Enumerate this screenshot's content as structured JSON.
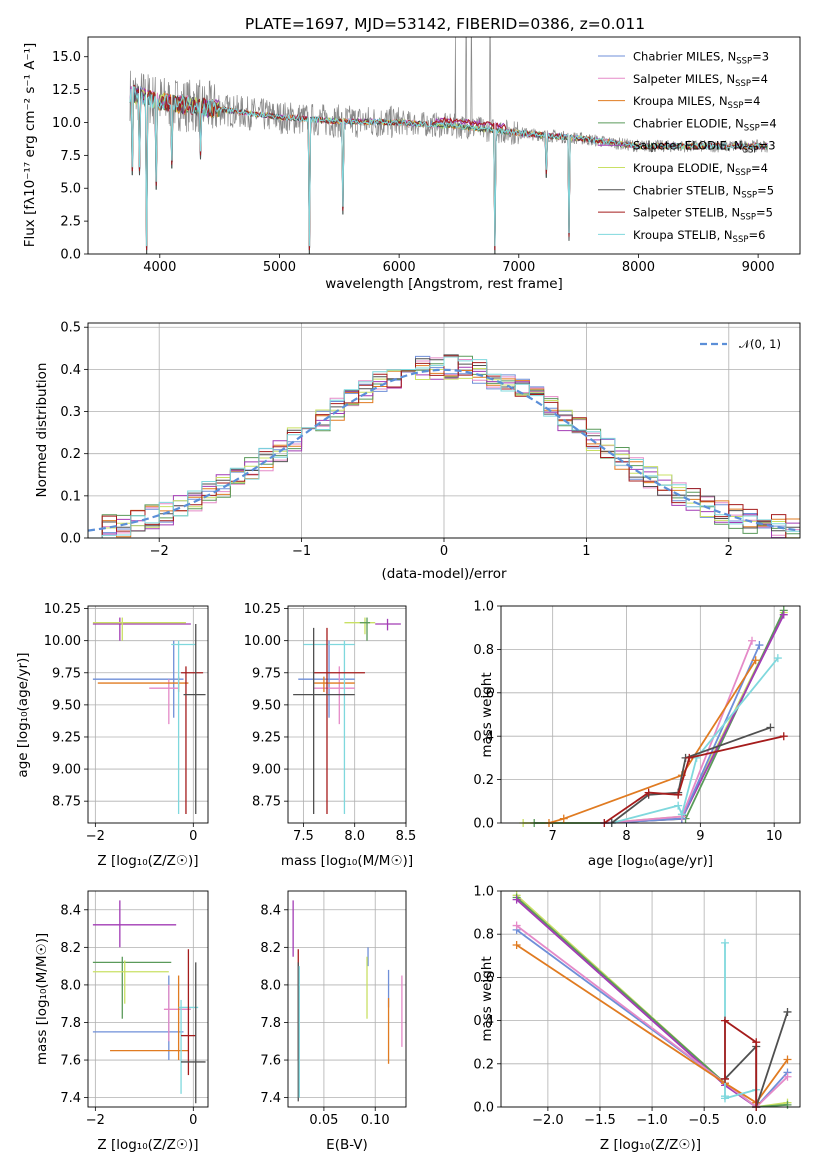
{
  "figure_title": "PLATE=1697, MJD=53142, FIBERID=0386, z=0.011",
  "colors": {
    "Chabrier MILES": "#6f8fd8",
    "Salpeter MILES": "#e58ac8",
    "Kroupa MILES": "#e07b21",
    "Chabrier ELODIE": "#5a9a5a",
    "Salpeter ELODIE": "#a23cb5",
    "Kroupa ELODIE": "#c9e064",
    "Chabrier STELIB": "#505050",
    "Salpeter STELIB": "#a51c1c",
    "Kroupa STELIB": "#7fd8dd",
    "data": "#888888",
    "normal": "#5b8fd8"
  },
  "chart_data": [
    {
      "id": "spectrum",
      "type": "line",
      "title": "PLATE=1697, MJD=53142, FIBERID=0386, z=0.011",
      "xlabel": "wavelength [Angstrom, rest frame]",
      "ylabel": "Flux [f$_\\lambda$10$^{-17}$ erg cm$^{-2}$ s$^{-1}$ A$^{-1}$]",
      "ylabel_text": "Flux [fλ10⁻¹⁷ erg cm⁻² s⁻¹ A⁻¹]",
      "xlim": [
        3400,
        9350
      ],
      "ylim": [
        0,
        16.5
      ],
      "xticks": [
        "4000",
        "5000",
        "6000",
        "7000",
        "8000",
        "9000"
      ],
      "yticks": [
        "0.0",
        "2.5",
        "5.0",
        "7.5",
        "10.0",
        "12.5",
        "15.0"
      ],
      "legend_position": "top-right",
      "legend": [
        {
          "series": "Chabrier MILES",
          "n": "3"
        },
        {
          "series": "Salpeter MILES",
          "n": "4"
        },
        {
          "series": "Kroupa MILES",
          "n": "4"
        },
        {
          "series": "Chabrier ELODIE",
          "n": "4"
        },
        {
          "series": "Salpeter ELODIE",
          "n": "3"
        },
        {
          "series": "Kroupa ELODIE",
          "n": "4"
        },
        {
          "series": "Chabrier STELIB",
          "n": "5"
        },
        {
          "series": "Salpeter STELIB",
          "n": "5"
        },
        {
          "series": "Kroupa STELIB",
          "n": "6"
        }
      ],
      "continuum": {
        "x": [
          3750,
          4000,
          4500,
          5000,
          5500,
          6000,
          6500,
          7000,
          7500,
          8000,
          8500,
          9000
        ],
        "y": [
          12.2,
          11.6,
          11.0,
          10.4,
          10.1,
          10.0,
          9.7,
          9.2,
          8.8,
          8.2,
          8.2,
          8.2
        ]
      },
      "absorption_features": [
        {
          "x": 3770,
          "y": 6.0
        },
        {
          "x": 3830,
          "y": 6.0
        },
        {
          "x": 3890,
          "y": 0.0
        },
        {
          "x": 3970,
          "y": 4.9
        },
        {
          "x": 4102,
          "y": 6.5
        },
        {
          "x": 4340,
          "y": 7.2
        },
        {
          "x": 5250,
          "y": 0.0
        },
        {
          "x": 5530,
          "y": 3.0
        },
        {
          "x": 6800,
          "y": 0.0
        },
        {
          "x": 7230,
          "y": 5.8
        },
        {
          "x": 7420,
          "y": 1.0
        }
      ],
      "data_spikes": [
        {
          "x": 6470,
          "y": 16.5
        },
        {
          "x": 6560,
          "y": 16.5
        },
        {
          "x": 6605,
          "y": 16.5
        },
        {
          "x": 6760,
          "y": 16.5
        }
      ]
    },
    {
      "id": "residuals",
      "type": "histogram",
      "xlabel": "(data-model)/error",
      "ylabel": "Normed distribution",
      "xlim": [
        -2.5,
        2.5
      ],
      "ylim": [
        0,
        0.51
      ],
      "xticks": [
        "−2",
        "−1",
        "0",
        "1",
        "2"
      ],
      "yticks": [
        "0.0",
        "0.1",
        "0.2",
        "0.3",
        "0.4",
        "0.5"
      ],
      "grid": true,
      "legend_position": "top-right",
      "normal_label": "𝒩(0, 1)",
      "bin_width": 0.1,
      "bin_start": -2.5
    },
    {
      "id": "age_vs_Z",
      "type": "errorbar",
      "xlabel": "Z [log₁₀(Z/Z☉)]",
      "ylabel": "age  [log₁₀(age/yr)]",
      "xlim": [
        -2.15,
        0.3
      ],
      "ylim": [
        8.58,
        10.27
      ],
      "xticks": [
        "−2",
        "0"
      ],
      "yticks": [
        "8.75",
        "9.00",
        "9.25",
        "9.50",
        "9.75",
        "10.00",
        "10.25"
      ],
      "grid": true,
      "points": [
        {
          "series": "Salpeter ELODIE",
          "x": -1.5,
          "xmin": -2.05,
          "xmax": -0.05,
          "y": 10.13,
          "ymin": 10.0,
          "ymax": 10.18
        },
        {
          "series": "Kroupa ELODIE",
          "x": -1.45,
          "xmin": -2.05,
          "xmax": -0.15,
          "y": 10.14,
          "ymin": 10.0,
          "ymax": 10.18
        },
        {
          "series": "Chabrier MILES",
          "x": -0.4,
          "xmin": -2.05,
          "xmax": -0.2,
          "y": 9.7,
          "ymin": 9.4,
          "ymax": 10.0
        },
        {
          "series": "Salpeter MILES",
          "x": -0.5,
          "xmin": -0.9,
          "xmax": -0.3,
          "y": 9.63,
          "ymin": 9.35,
          "ymax": 9.7
        },
        {
          "series": "Kroupa MILES",
          "x": -0.3,
          "xmin": -1.95,
          "xmax": -0.1,
          "y": 9.67,
          "ymin": 9.6,
          "ymax": 9.72
        },
        {
          "series": "Kroupa STELIB",
          "x": -0.3,
          "xmin": -0.45,
          "xmax": 0.05,
          "y": 9.97,
          "ymin": 8.65,
          "ymax": 10.0
        },
        {
          "series": "Salpeter STELIB",
          "x": -0.15,
          "xmin": -0.25,
          "xmax": 0.2,
          "y": 9.75,
          "ymin": 8.65,
          "ymax": 9.8
        },
        {
          "series": "Chabrier STELIB",
          "x": 0.05,
          "xmin": -0.2,
          "xmax": 0.25,
          "y": 9.58,
          "ymin": 8.65,
          "ymax": 10.13
        }
      ]
    },
    {
      "id": "age_vs_mass",
      "type": "errorbar",
      "xlabel": "mass [log₁₀(M/M☉)]",
      "xlim": [
        7.35,
        8.5
      ],
      "ylim": [
        8.58,
        10.27
      ],
      "xticks": [
        "7.5",
        "8.0",
        "8.5"
      ],
      "yticks": [
        "8.75",
        "9.00",
        "9.25",
        "9.50",
        "9.75",
        "10.00",
        "10.25"
      ],
      "grid": true,
      "points": [
        {
          "series": "Salpeter ELODIE",
          "x": 8.32,
          "xmin": 8.2,
          "xmax": 8.45,
          "y": 10.13,
          "ymin": 10.08,
          "ymax": 10.17
        },
        {
          "series": "Kroupa ELODIE",
          "x": 8.1,
          "xmin": 7.9,
          "xmax": 8.2,
          "y": 10.14,
          "ymin": 10.05,
          "ymax": 10.18
        },
        {
          "series": "Chabrier ELODIE",
          "x": 8.12,
          "xmin": 8.05,
          "xmax": 8.15,
          "y": 10.14,
          "ymin": 10.0,
          "ymax": 10.18
        },
        {
          "series": "Chabrier MILES",
          "x": 7.75,
          "xmin": 7.45,
          "xmax": 8.0,
          "y": 9.7,
          "ymin": 9.4,
          "ymax": 10.0
        },
        {
          "series": "Salpeter MILES",
          "x": 7.85,
          "xmin": 7.6,
          "xmax": 8.0,
          "y": 9.63,
          "ymin": 9.35,
          "ymax": 9.8
        },
        {
          "series": "Kroupa MILES",
          "x": 7.7,
          "xmin": 7.6,
          "xmax": 8.0,
          "y": 9.67,
          "ymin": 9.6,
          "ymax": 9.72
        },
        {
          "series": "Kroupa STELIB",
          "x": 7.9,
          "xmin": 7.5,
          "xmax": 8.0,
          "y": 9.97,
          "ymin": 8.65,
          "ymax": 10.0
        },
        {
          "series": "Salpeter STELIB",
          "x": 7.73,
          "xmin": 7.6,
          "xmax": 8.1,
          "y": 9.75,
          "ymin": 8.65,
          "ymax": 10.1
        },
        {
          "series": "Chabrier STELIB",
          "x": 7.6,
          "xmin": 7.4,
          "xmax": 8.0,
          "y": 9.58,
          "ymin": 8.65,
          "ymax": 10.1
        }
      ]
    },
    {
      "id": "weight_vs_age",
      "type": "line",
      "xlabel": "age  [log₁₀(age/yr)]",
      "ylabel": "mass weight",
      "xlim": [
        6.3,
        10.35
      ],
      "ylim": [
        0,
        1.0
      ],
      "xticks": [
        "7",
        "8",
        "9",
        "10"
      ],
      "yticks": [
        "0.0",
        "0.2",
        "0.4",
        "0.6",
        "0.8",
        "1.0"
      ],
      "grid": true,
      "series": [
        {
          "name": "Kroupa ELODIE",
          "x": [
            6.6,
            7.7,
            8.75,
            10.13
          ],
          "y": [
            0.0,
            0.0,
            0.03,
            0.97
          ]
        },
        {
          "name": "Chabrier ELODIE",
          "x": [
            6.75,
            7.7,
            8.8,
            10.13
          ],
          "y": [
            0.0,
            0.0,
            0.02,
            0.98
          ]
        },
        {
          "name": "Salpeter ELODIE",
          "x": [
            7.7,
            8.75,
            10.13
          ],
          "y": [
            0.0,
            0.02,
            0.96
          ]
        },
        {
          "name": "Chabrier MILES",
          "x": [
            7.7,
            8.75,
            9.8
          ],
          "y": [
            0.0,
            0.02,
            0.82
          ]
        },
        {
          "name": "Salpeter MILES",
          "x": [
            7.7,
            8.75,
            9.7
          ],
          "y": [
            0.0,
            0.03,
            0.84
          ]
        },
        {
          "name": "Kroupa MILES",
          "x": [
            6.95,
            7.15,
            8.75,
            9.75
          ],
          "y": [
            0.0,
            0.02,
            0.22,
            0.75
          ]
        },
        {
          "name": "Kroupa STELIB",
          "x": [
            7.8,
            8.7,
            8.75,
            8.95,
            10.05
          ],
          "y": [
            0.0,
            0.08,
            0.04,
            0.3,
            0.76
          ]
        },
        {
          "name": "Chabrier STELIB",
          "x": [
            7.8,
            8.3,
            8.7,
            8.8,
            9.95
          ],
          "y": [
            0.0,
            0.13,
            0.14,
            0.3,
            0.44
          ]
        },
        {
          "name": "Salpeter STELIB",
          "x": [
            7.7,
            8.3,
            8.7,
            8.85,
            10.13
          ],
          "y": [
            0.0,
            0.14,
            0.13,
            0.3,
            0.4
          ]
        }
      ]
    },
    {
      "id": "mass_vs_Z",
      "type": "errorbar",
      "xlabel": "Z [log₁₀(Z/Z☉)]",
      "ylabel": "mass [log₁₀(M/M☉)]",
      "xlim": [
        -2.15,
        0.3
      ],
      "ylim": [
        7.35,
        8.5
      ],
      "xticks": [
        "−2",
        "0"
      ],
      "yticks": [
        "7.4",
        "7.6",
        "7.8",
        "8.0",
        "8.2",
        "8.4"
      ],
      "grid": true,
      "points": [
        {
          "series": "Salpeter ELODIE",
          "x": -1.5,
          "xmin": -2.05,
          "xmax": -0.35,
          "y": 8.32,
          "ymin": 8.2,
          "ymax": 8.45
        },
        {
          "series": "Chabrier ELODIE",
          "x": -1.45,
          "xmin": -2.05,
          "xmax": -0.45,
          "y": 8.12,
          "ymin": 7.82,
          "ymax": 8.15
        },
        {
          "series": "Kroupa ELODIE",
          "x": -1.4,
          "xmin": -2.05,
          "xmax": -0.5,
          "y": 8.07,
          "ymin": 7.9,
          "ymax": 8.13
        },
        {
          "series": "Chabrier MILES",
          "x": -0.5,
          "xmin": -2.05,
          "xmax": -0.2,
          "y": 7.75,
          "ymin": 7.6,
          "ymax": 8.05
        },
        {
          "series": "Salpeter MILES",
          "x": -0.5,
          "xmin": -0.6,
          "xmax": -0.05,
          "y": 7.87,
          "ymin": 7.7,
          "ymax": 8.0
        },
        {
          "series": "Kroupa MILES",
          "x": -0.3,
          "xmin": -1.7,
          "xmax": -0.1,
          "y": 7.65,
          "ymin": 7.6,
          "ymax": 8.05
        },
        {
          "series": "Kroupa STELIB",
          "x": -0.25,
          "xmin": -0.3,
          "xmax": 0.1,
          "y": 7.88,
          "ymin": 7.42,
          "ymax": 7.92
        },
        {
          "series": "Salpeter STELIB",
          "x": -0.1,
          "xmin": -0.25,
          "xmax": 0.05,
          "y": 7.73,
          "ymin": 7.52,
          "ymax": 8.19
        },
        {
          "series": "Chabrier STELIB",
          "x": 0.05,
          "xmin": -0.25,
          "xmax": 0.25,
          "y": 7.59,
          "ymin": 7.37,
          "ymax": 8.12
        }
      ]
    },
    {
      "id": "mass_vs_ebv",
      "type": "errorbar",
      "xlabel": "E(B-V)",
      "xlim": [
        0.015,
        0.13
      ],
      "ylim": [
        7.35,
        8.5
      ],
      "xticks": [
        "0.05",
        "0.10"
      ],
      "yticks": [
        "7.4",
        "7.6",
        "7.8",
        "8.0",
        "8.2",
        "8.4"
      ],
      "grid": true,
      "points": [
        {
          "series": "Salpeter ELODIE",
          "x": 0.02,
          "ymin": 8.15,
          "ymax": 8.45
        },
        {
          "series": "Salpeter STELIB",
          "x": 0.025,
          "ymin": 7.6,
          "ymax": 8.19
        },
        {
          "series": "Chabrier STELIB",
          "x": 0.025,
          "ymin": 7.38,
          "ymax": 8.12
        },
        {
          "series": "Kroupa STELIB",
          "x": 0.026,
          "ymin": 7.4,
          "ymax": 8.1
        },
        {
          "series": "Chabrier MILES",
          "x": 0.093,
          "ymin": 8.1,
          "ymax": 8.2
        },
        {
          "series": "Kroupa ELODIE",
          "x": 0.092,
          "ymin": 7.82,
          "ymax": 8.15
        },
        {
          "series": "Chabrier MILES",
          "x": 0.113,
          "ymin": 7.88,
          "ymax": 8.08
        },
        {
          "series": "Kroupa MILES",
          "x": 0.113,
          "ymin": 7.58,
          "ymax": 7.93
        },
        {
          "series": "Salpeter MILES",
          "x": 0.126,
          "ymin": 7.67,
          "ymax": 8.05
        }
      ]
    },
    {
      "id": "weight_vs_Z",
      "type": "line",
      "xlabel": "Z [log₁₀(Z/Z☉)]",
      "ylabel": "mass weight",
      "xlim": [
        -2.45,
        0.42
      ],
      "ylim": [
        0,
        1.0
      ],
      "xticks": [
        "−2.0",
        "−1.5",
        "−1.0",
        "−0.5",
        "0.0"
      ],
      "yticks": [
        "0.0",
        "0.2",
        "0.4",
        "0.6",
        "0.8",
        "1.0"
      ],
      "grid": true,
      "series": [
        {
          "name": "Kroupa ELODIE",
          "x": [
            -2.3,
            -0.3,
            0.0,
            0.3
          ],
          "y": [
            0.98,
            0.11,
            0.0,
            0.02
          ]
        },
        {
          "name": "Chabrier ELODIE",
          "x": [
            -2.3,
            -0.3,
            0.0,
            0.3
          ],
          "y": [
            0.97,
            0.11,
            0.0,
            0.01
          ]
        },
        {
          "name": "Salpeter ELODIE",
          "x": [
            -2.3,
            -0.3,
            0.0
          ],
          "y": [
            0.96,
            0.1,
            0.0
          ]
        },
        {
          "name": "Chabrier MILES",
          "x": [
            -2.3,
            -0.3,
            0.0,
            0.3
          ],
          "y": [
            0.82,
            0.11,
            0.0,
            0.16
          ]
        },
        {
          "name": "Salpeter MILES",
          "x": [
            -2.3,
            -0.3,
            0.0,
            0.3
          ],
          "y": [
            0.84,
            0.11,
            0.0,
            0.14
          ]
        },
        {
          "name": "Kroupa MILES",
          "x": [
            -2.3,
            -0.3,
            0.0,
            0.3
          ],
          "y": [
            0.75,
            0.11,
            0.02,
            0.22
          ]
        },
        {
          "name": "Kroupa STELIB",
          "x": [
            -0.3,
            -0.3,
            -0.3,
            0.0,
            0.0
          ],
          "y": [
            0.76,
            0.05,
            0.04,
            0.08,
            0.0
          ]
        },
        {
          "name": "Chabrier STELIB",
          "x": [
            -0.3,
            0.0,
            0.0,
            0.3
          ],
          "y": [
            0.13,
            0.28,
            0.0,
            0.44
          ]
        },
        {
          "name": "Salpeter STELIB",
          "x": [
            -0.3,
            -0.3,
            0.0,
            0.0
          ],
          "y": [
            0.13,
            0.4,
            0.3,
            0.0
          ]
        }
      ]
    }
  ]
}
